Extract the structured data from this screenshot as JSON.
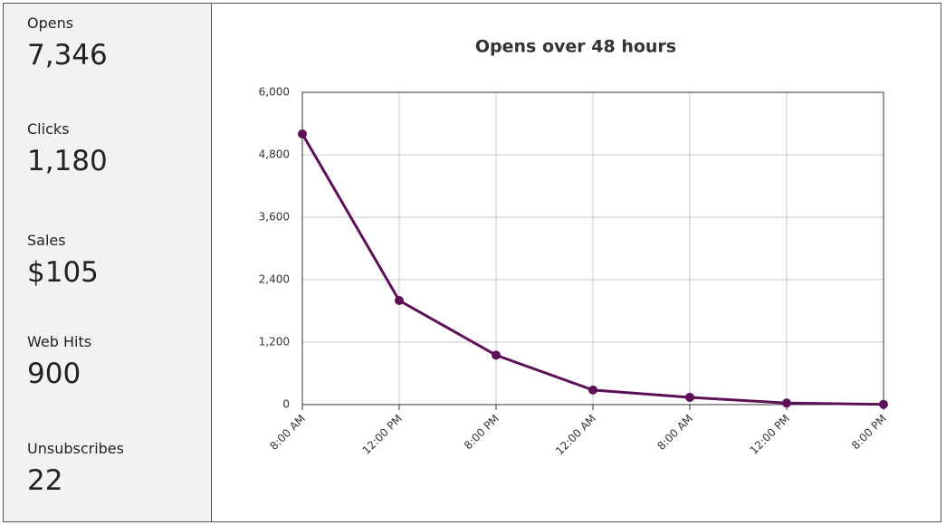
{
  "stats": [
    {
      "label": "Opens",
      "value": "7,346"
    },
    {
      "label": "Clicks",
      "value": "1,180"
    },
    {
      "label": "Sales",
      "value": "$105"
    },
    {
      "label": "Web Hits",
      "value": "900"
    },
    {
      "label": "Unsubscribes",
      "value": "22"
    }
  ],
  "chart_data": {
    "type": "line",
    "title": "Opens over 48 hours",
    "categories": [
      "8:00 AM",
      "12:00 PM",
      "8:00 PM",
      "12:00 AM",
      "8:00 AM",
      "12:00 PM",
      "8:00 PM"
    ],
    "series": [
      {
        "name": "Opens",
        "color": "#5c1057",
        "values": [
          5200,
          2000,
          950,
          280,
          140,
          30,
          5
        ]
      }
    ],
    "ylim": [
      0,
      6000
    ],
    "yticks": [
      0,
      {
        "value": 1200,
        "label": "1,200"
      },
      {
        "value": 2400,
        "label": "2,400"
      },
      {
        "value": 3600,
        "label": "3,600"
      },
      {
        "value": 4800,
        "label": "4,800"
      },
      {
        "value": 6000,
        "label": "6,000"
      }
    ],
    "grid": true
  }
}
